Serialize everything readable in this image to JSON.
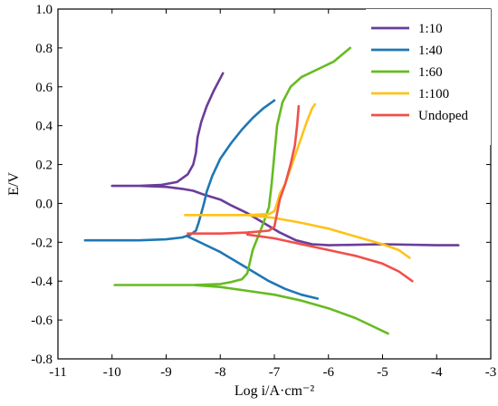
{
  "chart_data": {
    "type": "line",
    "title": "",
    "xlabel": "Log i/A·cm⁻²",
    "ylabel": "E/V",
    "xlim": [
      -11,
      -3
    ],
    "ylim": [
      -0.8,
      1.0
    ],
    "xticks": [
      -11,
      -10,
      -9,
      -8,
      -7,
      -6,
      -5,
      -4,
      -3
    ],
    "xtick_labels": [
      "-11",
      "-10",
      "-9",
      "-8",
      "-7",
      "-6",
      "-5",
      "-4",
      "-3"
    ],
    "yticks": [
      -0.8,
      -0.6,
      -0.4,
      -0.2,
      0.0,
      0.2,
      0.4,
      0.6,
      0.8,
      1.0
    ],
    "ytick_labels": [
      "-0.8",
      "-0.6",
      "-0.4",
      "-0.2",
      "0.0",
      "0.2",
      "0.4",
      "0.6",
      "0.8",
      "1.0"
    ],
    "grid": false,
    "legend": "top-right",
    "series": [
      {
        "name": "1:10",
        "color": "#6a3d9a",
        "points": [
          [
            -10.0,
            0.09
          ],
          [
            -9.5,
            0.09
          ],
          [
            -9.0,
            0.085
          ],
          [
            -8.7,
            0.075
          ],
          [
            -8.5,
            0.065
          ],
          [
            -8.3,
            0.045
          ],
          [
            -8.0,
            0.02
          ],
          [
            -7.8,
            -0.01
          ],
          [
            -7.5,
            -0.05
          ],
          [
            -7.2,
            -0.1
          ],
          [
            -6.9,
            -0.15
          ],
          [
            -6.6,
            -0.19
          ],
          [
            -6.3,
            -0.21
          ],
          [
            -6.0,
            -0.215
          ],
          [
            -5.0,
            -0.21
          ],
          [
            -4.0,
            -0.215
          ],
          [
            -3.6,
            -0.215
          ],
          null,
          [
            -10.0,
            0.09
          ],
          [
            -9.5,
            0.09
          ],
          [
            -9.1,
            0.095
          ],
          [
            -8.8,
            0.11
          ],
          [
            -8.6,
            0.15
          ],
          [
            -8.5,
            0.2
          ],
          [
            -8.45,
            0.26
          ],
          [
            -8.42,
            0.34
          ],
          [
            -8.35,
            0.42
          ],
          [
            -8.25,
            0.5
          ],
          [
            -8.12,
            0.58
          ],
          [
            -7.95,
            0.67
          ]
        ]
      },
      {
        "name": "1:40",
        "color": "#1f77b4",
        "points": [
          [
            -10.5,
            -0.19
          ],
          [
            -10.0,
            -0.19
          ],
          [
            -9.5,
            -0.19
          ],
          [
            -9.0,
            -0.185
          ],
          [
            -8.7,
            -0.175
          ],
          [
            -8.55,
            -0.16
          ],
          [
            -8.45,
            -0.14
          ],
          [
            -8.4,
            -0.1
          ],
          [
            -8.35,
            -0.05
          ],
          [
            -8.3,
            0.0
          ],
          [
            -8.25,
            0.06
          ],
          [
            -8.15,
            0.14
          ],
          [
            -8.0,
            0.23
          ],
          [
            -7.8,
            0.31
          ],
          [
            -7.6,
            0.38
          ],
          [
            -7.4,
            0.44
          ],
          [
            -7.2,
            0.49
          ],
          [
            -7.0,
            0.53
          ],
          null,
          [
            -8.6,
            -0.17
          ],
          [
            -8.3,
            -0.21
          ],
          [
            -8.0,
            -0.25
          ],
          [
            -7.7,
            -0.3
          ],
          [
            -7.4,
            -0.35
          ],
          [
            -7.1,
            -0.4
          ],
          [
            -6.8,
            -0.44
          ],
          [
            -6.5,
            -0.47
          ],
          [
            -6.2,
            -0.49
          ]
        ]
      },
      {
        "name": "1:60",
        "color": "#66bb22",
        "points": [
          [
            -9.95,
            -0.42
          ],
          [
            -9.5,
            -0.42
          ],
          [
            -9.0,
            -0.42
          ],
          [
            -8.5,
            -0.42
          ],
          [
            -8.0,
            -0.415
          ],
          [
            -7.8,
            -0.405
          ],
          [
            -7.6,
            -0.39
          ],
          [
            -7.5,
            -0.36
          ],
          [
            -7.45,
            -0.3
          ],
          [
            -7.4,
            -0.24
          ],
          [
            -7.3,
            -0.17
          ],
          [
            -7.2,
            -0.1
          ],
          [
            -7.1,
            -0.02
          ],
          [
            -7.05,
            0.1
          ],
          [
            -7.0,
            0.25
          ],
          [
            -6.95,
            0.4
          ],
          [
            -6.85,
            0.52
          ],
          [
            -6.7,
            0.6
          ],
          [
            -6.5,
            0.65
          ],
          [
            -6.2,
            0.69
          ],
          [
            -5.9,
            0.73
          ],
          [
            -5.6,
            0.8
          ],
          null,
          [
            -8.5,
            -0.42
          ],
          [
            -8.0,
            -0.43
          ],
          [
            -7.5,
            -0.45
          ],
          [
            -7.0,
            -0.47
          ],
          [
            -6.5,
            -0.5
          ],
          [
            -6.0,
            -0.54
          ],
          [
            -5.5,
            -0.59
          ],
          [
            -5.2,
            -0.63
          ],
          [
            -4.9,
            -0.67
          ]
        ]
      },
      {
        "name": "1:100",
        "color": "#ffc21a",
        "points": [
          [
            -8.65,
            -0.06
          ],
          [
            -8.0,
            -0.06
          ],
          [
            -7.5,
            -0.06
          ],
          [
            -7.1,
            -0.055
          ],
          [
            -7.0,
            -0.04
          ],
          [
            -6.95,
            0.0
          ],
          [
            -6.9,
            0.05
          ],
          [
            -6.8,
            0.1
          ],
          [
            -6.7,
            0.18
          ],
          [
            -6.6,
            0.26
          ],
          [
            -6.5,
            0.34
          ],
          [
            -6.4,
            0.42
          ],
          [
            -6.3,
            0.49
          ],
          [
            -6.25,
            0.51
          ],
          null,
          [
            -7.5,
            -0.06
          ],
          [
            -7.0,
            -0.075
          ],
          [
            -6.5,
            -0.1
          ],
          [
            -6.0,
            -0.13
          ],
          [
            -5.5,
            -0.17
          ],
          [
            -5.0,
            -0.21
          ],
          [
            -4.7,
            -0.24
          ],
          [
            -4.5,
            -0.28
          ]
        ]
      },
      {
        "name": "Undoped",
        "color": "#f0504a",
        "points": [
          [
            -8.6,
            -0.155
          ],
          [
            -8.0,
            -0.155
          ],
          [
            -7.5,
            -0.15
          ],
          [
            -7.1,
            -0.14
          ],
          [
            -7.0,
            -0.12
          ],
          [
            -6.95,
            -0.05
          ],
          [
            -6.9,
            0.02
          ],
          [
            -6.8,
            0.1
          ],
          [
            -6.7,
            0.2
          ],
          [
            -6.62,
            0.3
          ],
          [
            -6.58,
            0.4
          ],
          [
            -6.55,
            0.5
          ],
          null,
          [
            -7.5,
            -0.16
          ],
          [
            -7.0,
            -0.18
          ],
          [
            -6.5,
            -0.21
          ],
          [
            -6.0,
            -0.24
          ],
          [
            -5.5,
            -0.27
          ],
          [
            -5.0,
            -0.31
          ],
          [
            -4.7,
            -0.35
          ],
          [
            -4.45,
            -0.4
          ]
        ]
      }
    ]
  }
}
